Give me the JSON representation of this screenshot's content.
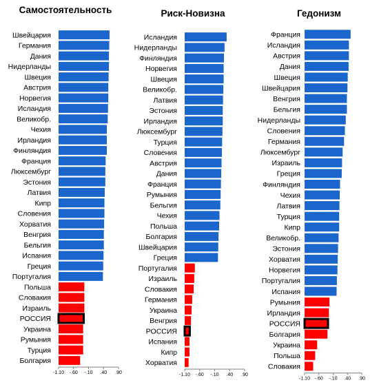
{
  "colors": {
    "positive": "#1a66cc",
    "negative": "#ff0000",
    "highlight_outline": "#000000",
    "axis": "#808080"
  },
  "chart_data": [
    {
      "type": "bar",
      "orientation": "horizontal",
      "title": "Самостоятельность",
      "xlim": [
        -1.1,
        0.9
      ],
      "xticks": [
        "-1.10",
        "-.60",
        "-.10",
        ".40",
        ".90"
      ],
      "categories": [
        "Швейцария",
        "Германия",
        "Дания",
        "Нидерланды",
        "Швеция",
        "Австрия",
        "Норвегия",
        "Исландия",
        "Великобр.",
        "Чехия",
        "Ирландия",
        "Финляндия",
        "Франция",
        "Люксембург",
        "Эстония",
        "Латвия",
        "Кипр",
        "Словения",
        "Хорватия",
        "Венгрия",
        "Бельгия",
        "Испания",
        "Греция",
        "Португалия",
        "Польша",
        "Словакия",
        "Израиль",
        "РОССИЯ",
        "Украина",
        "Румыния",
        "Турция",
        "Болгария"
      ],
      "values": [
        0.6,
        0.59,
        0.58,
        0.58,
        0.57,
        0.56,
        0.56,
        0.55,
        0.54,
        0.51,
        0.51,
        0.51,
        0.47,
        0.46,
        0.46,
        0.44,
        0.43,
        0.43,
        0.42,
        0.41,
        0.41,
        0.4,
        0.39,
        0.38,
        -0.24,
        -0.24,
        -0.24,
        -0.26,
        -0.28,
        -0.28,
        -0.28,
        -0.38
      ],
      "highlight": "РОССИЯ"
    },
    {
      "type": "bar",
      "orientation": "horizontal",
      "title": "Риск-Новизна",
      "xlim": [
        -1.1,
        0.9
      ],
      "xticks": [
        "-1.10",
        "-.60",
        "-.10",
        ".40",
        ".90"
      ],
      "categories": [
        "Исландия",
        "Нидерланды",
        "Финляндия",
        "Норвегия",
        "Швеция",
        "Великобр.",
        "Латвия",
        "Эстония",
        "Ирландия",
        "Люксембург",
        "Турция",
        "Словения",
        "Австрия",
        "Дания",
        "Франция",
        "Румыния",
        "Бельгия",
        "Чехия",
        "Польша",
        "Болгария",
        "Швейцария",
        "Греция",
        "Португалия",
        "Израиль",
        "Словакия",
        "Германия",
        "Украина",
        "Венгрия",
        "РОССИЯ",
        "Испания",
        "Кипр",
        "Хорватия"
      ],
      "values": [
        0.3,
        0.23,
        0.21,
        0.2,
        0.2,
        0.19,
        0.18,
        0.17,
        0.17,
        0.16,
        0.15,
        0.14,
        0.13,
        0.12,
        0.11,
        0.1,
        0.09,
        0.06,
        0.05,
        0.03,
        0.02,
        0.01,
        -0.76,
        -0.78,
        -0.8,
        -0.85,
        -0.87,
        -0.89,
        -0.93,
        -0.94,
        -0.94,
        -0.97
      ],
      "highlight": "РОССИЯ"
    },
    {
      "type": "bar",
      "orientation": "horizontal",
      "title": "Гедонизм",
      "xlim": [
        -1.1,
        0.9
      ],
      "xticks": [
        "-1.10",
        "-.60",
        "-.10",
        ".40",
        ".90"
      ],
      "categories": [
        "Франция",
        "Исландия",
        "Австрия",
        "Дания",
        "Швеция",
        "Швейцария",
        "Венгрия",
        "Бельгия",
        "Нидерланды",
        "Словения",
        "Германия",
        "Люксембург",
        "Израиль",
        "Греция",
        "Финляндия",
        "Чехия",
        "Латвия",
        "Турция",
        "Кипр",
        "Великобр.",
        "Эстония",
        "Хорватия",
        "Норвегия",
        "Португалия",
        "Испания",
        "Румыния",
        "Ирландия",
        "РОССИЯ",
        "Болгария",
        "Украина",
        "Польша",
        "Словакия"
      ],
      "values": [
        0.51,
        0.45,
        0.45,
        0.44,
        0.41,
        0.4,
        0.38,
        0.38,
        0.34,
        0.31,
        0.28,
        0.23,
        0.21,
        0.2,
        0.14,
        0.13,
        0.12,
        0.11,
        0.11,
        0.09,
        0.07,
        0.06,
        0.05,
        0.03,
        0.02,
        -0.23,
        -0.25,
        -0.28,
        -0.3,
        -0.66,
        -0.73,
        -0.8
      ],
      "highlight": "РОССИЯ"
    }
  ]
}
